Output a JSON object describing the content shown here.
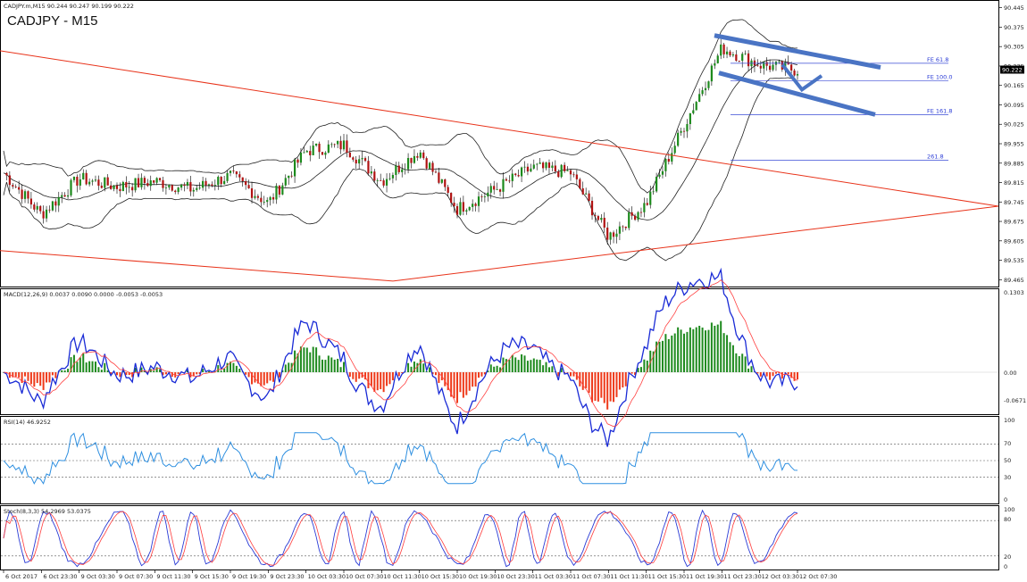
{
  "header": {
    "symbol_line": "CADJPY.m,M15  90.244 90.247 90.199 90.222",
    "title": "CADJPY - M15"
  },
  "price_axis": {
    "labels": [
      "90.445",
      "90.375",
      "90.305",
      "90.235",
      "90.165",
      "90.095",
      "90.025",
      "89.955",
      "89.885",
      "89.815",
      "89.745",
      "89.675",
      "89.605",
      "89.535",
      "89.465"
    ],
    "current_price": "90.222",
    "range": [
      89.45,
      90.46
    ]
  },
  "fib_levels": [
    {
      "label": "FE 61.8",
      "price": 90.245
    },
    {
      "label": "FE 100.0",
      "price": 90.182
    },
    {
      "label": "FE 161.8",
      "price": 90.06
    },
    {
      "label": "261.8",
      "price": 89.895
    }
  ],
  "macd": {
    "header": "MACD(12,26,9) 0.0037 0.0090 0.0000 -0.0053 -0.0053",
    "labels": [
      "0.1303",
      "0.00",
      "-0.0671"
    ]
  },
  "rsi": {
    "header": "RSI(14) 46.9252",
    "labels": [
      "100",
      "70",
      "50",
      "30",
      "0"
    ]
  },
  "stoch": {
    "header": "Stoch(8,3,3) 54.2969 53.0375",
    "labels": [
      "100",
      "80",
      "20",
      "0"
    ]
  },
  "time_axis": {
    "labels": [
      "6 Oct 2017",
      "6 Oct 23:30",
      "9 Oct 03:30",
      "9 Oct 07:30",
      "9 Oct 11:30",
      "9 Oct 15:30",
      "9 Oct 19:30",
      "9 Oct 23:30",
      "10 Oct 03:30",
      "10 Oct 07:30",
      "10 Oct 11:30",
      "10 Oct 15:30",
      "10 Oct 19:30",
      "10 Oct 23:30",
      "11 Oct 03:30",
      "11 Oct 07:30",
      "11 Oct 11:30",
      "11 Oct 15:30",
      "11 Oct 19:30",
      "11 Oct 23:30",
      "12 Oct 03:30",
      "12 Oct 07:30"
    ]
  },
  "colors": {
    "bull_candle": "#1c8a1c",
    "bear_candle": "#b01212",
    "bollinger": "#222222",
    "triangle": "#e8331a",
    "channel": "#4a74c4",
    "macd_line": "#1a2bd6",
    "macd_signal": "#ff4040",
    "macd_hist_pos": "#1e8a1e",
    "macd_hist_neg": "#ee3a1a",
    "rsi_line": "#2e8fe0",
    "stoch_main": "#2a3bd6",
    "stoch_signal": "#ff3b3b"
  },
  "chart_data": [
    {
      "type": "candlestick",
      "title": "CADJPY - M15",
      "ylim": [
        89.45,
        90.46
      ],
      "approx_close_path": [
        {
          "x": "6 Oct 2017",
          "y": 89.85
        },
        {
          "x": "6 Oct 23:30",
          "y": 89.7
        },
        {
          "x": "9 Oct 03:30",
          "y": 89.83
        },
        {
          "x": "9 Oct 07:30",
          "y": 89.8
        },
        {
          "x": "9 Oct 11:30",
          "y": 89.82
        },
        {
          "x": "9 Oct 15:30",
          "y": 89.79
        },
        {
          "x": "9 Oct 19:30",
          "y": 89.84
        },
        {
          "x": "9 Oct 23:30",
          "y": 89.74
        },
        {
          "x": "10 Oct 03:30",
          "y": 89.93
        },
        {
          "x": "10 Oct 07:30",
          "y": 89.95
        },
        {
          "x": "10 Oct 11:30",
          "y": 89.82
        },
        {
          "x": "10 Oct 15:30",
          "y": 89.93
        },
        {
          "x": "10 Oct 19:30",
          "y": 89.72
        },
        {
          "x": "10 Oct 23:30",
          "y": 89.79
        },
        {
          "x": "11 Oct 03:30",
          "y": 89.87
        },
        {
          "x": "11 Oct 07:30",
          "y": 89.85
        },
        {
          "x": "11 Oct 11:30",
          "y": 89.62
        },
        {
          "x": "11 Oct 15:30",
          "y": 89.74
        },
        {
          "x": "11 Oct 19:30",
          "y": 90.02
        },
        {
          "x": "11 Oct 23:30",
          "y": 90.3
        },
        {
          "x": "12 Oct 03:30",
          "y": 90.24
        },
        {
          "x": "12 Oct 07:30",
          "y": 90.22
        }
      ]
    }
  ]
}
